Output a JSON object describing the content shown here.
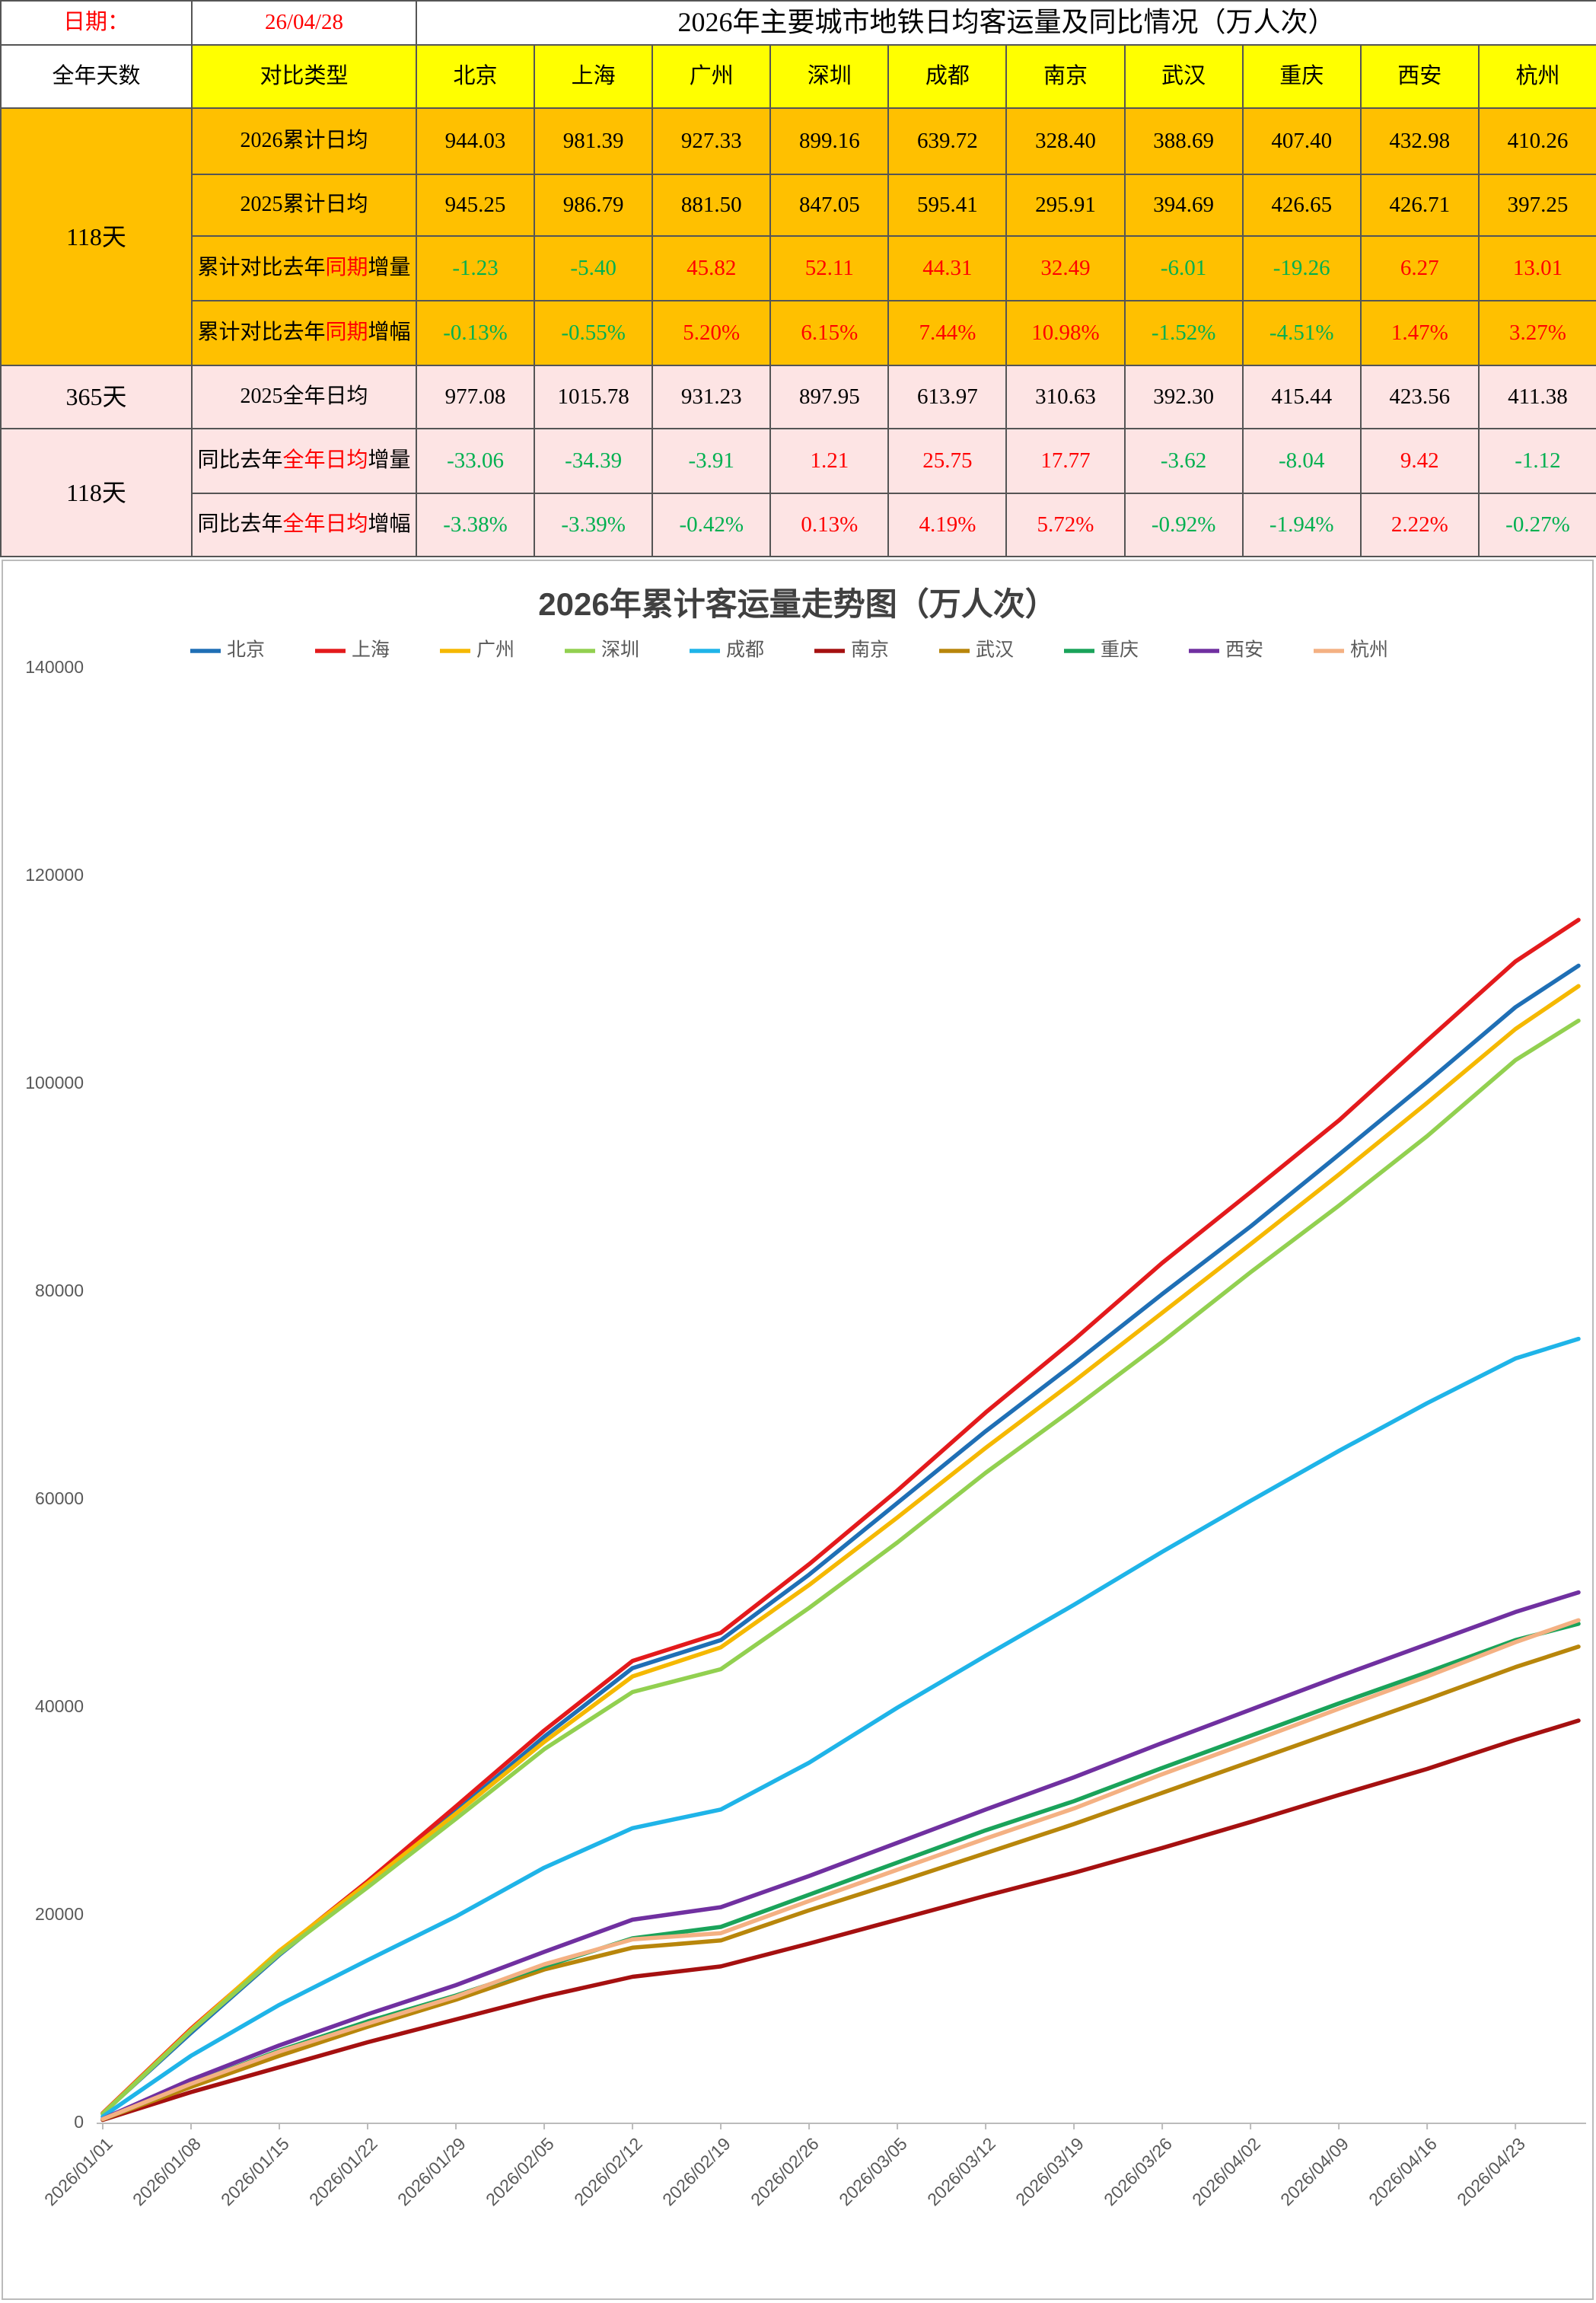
{
  "table": {
    "date_label": "日期：",
    "date": "26/04/28",
    "title": "2026年主要城市地铁日均客运量及同比情况（万人次）",
    "header": {
      "days": "全年天数",
      "type": "对比类型",
      "color": "#ffff00",
      "cities": [
        "北京",
        "上海",
        "广州",
        "深圳",
        "成都",
        "南京",
        "武汉",
        "重庆",
        "西安",
        "杭州"
      ]
    },
    "groups": [
      {
        "days": "118天",
        "color": "#ffc000",
        "rows": [
          {
            "label": [
              "2026累计日均"
            ],
            "values": [
              "944.03",
              "981.39",
              "927.33",
              "899.16",
              "639.72",
              "328.40",
              "388.69",
              "407.40",
              "432.98",
              "410.26"
            ]
          },
          {
            "label": [
              "2025累计日均"
            ],
            "values": [
              "945.25",
              "986.79",
              "881.50",
              "847.05",
              "595.41",
              "295.91",
              "394.69",
              "426.65",
              "426.71",
              "397.25"
            ]
          },
          {
            "label": [
              "累计对比去年",
              {
                "text": "同期",
                "color": "#ff0000"
              },
              "增量"
            ],
            "signed_colors": {
              "positive": "#ff0000",
              "negative": "#00b050"
            },
            "values": [
              "-1.23",
              "-5.40",
              "45.82",
              "52.11",
              "44.31",
              "32.49",
              "-6.01",
              "-19.26",
              "6.27",
              "13.01"
            ]
          },
          {
            "label": [
              "累计对比去年",
              {
                "text": "同期",
                "color": "#ff0000"
              },
              "增幅"
            ],
            "signed_colors": {
              "positive": "#ff0000",
              "negative": "#00b050"
            },
            "values": [
              "-0.13%",
              "-0.55%",
              "5.20%",
              "6.15%",
              "7.44%",
              "10.98%",
              "-1.52%",
              "-4.51%",
              "1.47%",
              "3.27%"
            ]
          }
        ]
      },
      {
        "days": "365天",
        "color": "#fde4e4",
        "rows": [
          {
            "label": [
              "2025全年日均"
            ],
            "values": [
              "977.08",
              "1015.78",
              "931.23",
              "897.95",
              "613.97",
              "310.63",
              "392.30",
              "415.44",
              "423.56",
              "411.38"
            ]
          }
        ]
      },
      {
        "days": "118天",
        "color": "#fde4e4",
        "rows": [
          {
            "label": [
              "同比去年",
              {
                "text": "全年日均",
                "color": "#ff0000"
              },
              "增量"
            ],
            "signed_colors": {
              "positive": "#ff0000",
              "negative": "#00b050"
            },
            "values": [
              "-33.06",
              "-34.39",
              "-3.91",
              "1.21",
              "25.75",
              "17.77",
              "-3.62",
              "-8.04",
              "9.42",
              "-1.12"
            ]
          },
          {
            "label": [
              "同比去年",
              {
                "text": "全年日均",
                "color": "#ff0000"
              },
              "增幅"
            ],
            "signed_colors": {
              "positive": "#ff0000",
              "negative": "#00b050"
            },
            "values": [
              "-3.38%",
              "-3.39%",
              "-0.42%",
              "0.13%",
              "4.19%",
              "5.72%",
              "-0.92%",
              "-1.94%",
              "2.22%",
              "-0.27%"
            ]
          }
        ]
      }
    ]
  },
  "chart_data": {
    "type": "line",
    "title": "2026年累计客运量走势图（万人次）",
    "x": [
      1,
      8,
      15,
      22,
      29,
      36,
      43,
      50,
      57,
      64,
      71,
      78,
      85,
      92,
      99,
      106,
      113,
      118
    ],
    "xlim": [
      1,
      118
    ],
    "xticks": [
      {
        "value": 1,
        "label": "2026/01/01"
      },
      {
        "value": 8,
        "label": "2026/01/08"
      },
      {
        "value": 15,
        "label": "2026/01/15"
      },
      {
        "value": 22,
        "label": "2026/01/22"
      },
      {
        "value": 29,
        "label": "2026/01/29"
      },
      {
        "value": 36,
        "label": "2026/02/05"
      },
      {
        "value": 43,
        "label": "2026/02/12"
      },
      {
        "value": 50,
        "label": "2026/02/19"
      },
      {
        "value": 57,
        "label": "2026/02/26"
      },
      {
        "value": 64,
        "label": "2026/03/05"
      },
      {
        "value": 71,
        "label": "2026/03/12"
      },
      {
        "value": 78,
        "label": "2026/03/19"
      },
      {
        "value": 85,
        "label": "2026/03/26"
      },
      {
        "value": 92,
        "label": "2026/04/02"
      },
      {
        "value": 99,
        "label": "2026/04/09"
      },
      {
        "value": 106,
        "label": "2026/04/16"
      },
      {
        "value": 113,
        "label": "2026/04/23"
      }
    ],
    "ylim": [
      0,
      140000
    ],
    "yticks": [
      0,
      20000,
      40000,
      60000,
      80000,
      100000,
      120000,
      140000
    ],
    "grid": false,
    "legend": "top",
    "series": [
      {
        "name": "北京",
        "color": "#1f6fb5",
        "values": [
          950,
          8700,
          16200,
          23000,
          30000,
          37200,
          43800,
          46500,
          52800,
          59700,
          66600,
          73100,
          79800,
          86300,
          93200,
          100200,
          107400,
          111395
        ]
      },
      {
        "name": "上海",
        "color": "#e31a1c",
        "values": [
          980,
          9100,
          16500,
          23300,
          30500,
          37800,
          44500,
          47200,
          53800,
          60900,
          68400,
          75400,
          82800,
          89600,
          96500,
          104200,
          111800,
          115804
        ]
      },
      {
        "name": "广州",
        "color": "#f5b800",
        "values": [
          930,
          9000,
          16600,
          23100,
          29800,
          36700,
          43000,
          45800,
          51800,
          58300,
          65000,
          71400,
          78000,
          84600,
          91300,
          98200,
          105300,
          109425
        ]
      },
      {
        "name": "深圳",
        "color": "#92d050",
        "values": [
          900,
          8900,
          16300,
          22700,
          29300,
          36000,
          41500,
          43700,
          49600,
          55900,
          62600,
          68800,
          75200,
          81900,
          88300,
          95000,
          102300,
          106101
        ]
      },
      {
        "name": "成都",
        "color": "#1fb4e8",
        "values": [
          650,
          6500,
          11400,
          15700,
          19900,
          24600,
          28400,
          30200,
          34700,
          40000,
          45000,
          49900,
          55000,
          59900,
          64700,
          69300,
          73600,
          75487
        ]
      },
      {
        "name": "南京",
        "color": "#a51010",
        "values": [
          330,
          3000,
          5400,
          7800,
          10000,
          12200,
          14100,
          15100,
          17300,
          19600,
          21900,
          24100,
          26500,
          29000,
          31600,
          34100,
          36900,
          38751
        ]
      },
      {
        "name": "武汉",
        "color": "#b8860b",
        "values": [
          390,
          3500,
          6500,
          9300,
          11900,
          14800,
          16900,
          17600,
          20500,
          23200,
          26000,
          28800,
          31800,
          34800,
          37800,
          40800,
          43900,
          45865
        ]
      },
      {
        "name": "重庆",
        "color": "#1aa35a",
        "values": [
          400,
          3800,
          7000,
          9800,
          12300,
          15100,
          17800,
          18900,
          22000,
          25100,
          28200,
          31000,
          34200,
          37300,
          40400,
          43400,
          46500,
          48073
        ]
      },
      {
        "name": "西安",
        "color": "#7030a0",
        "values": [
          430,
          4200,
          7500,
          10500,
          13300,
          16500,
          19600,
          20800,
          23800,
          27000,
          30200,
          33300,
          36600,
          39800,
          43000,
          46100,
          49200,
          51092
        ]
      },
      {
        "name": "杭州",
        "color": "#f4b183",
        "values": [
          410,
          3800,
          6900,
          9600,
          12200,
          15300,
          17700,
          18300,
          21400,
          24400,
          27400,
          30300,
          33600,
          36700,
          39900,
          43000,
          46300,
          48411
        ]
      }
    ]
  }
}
